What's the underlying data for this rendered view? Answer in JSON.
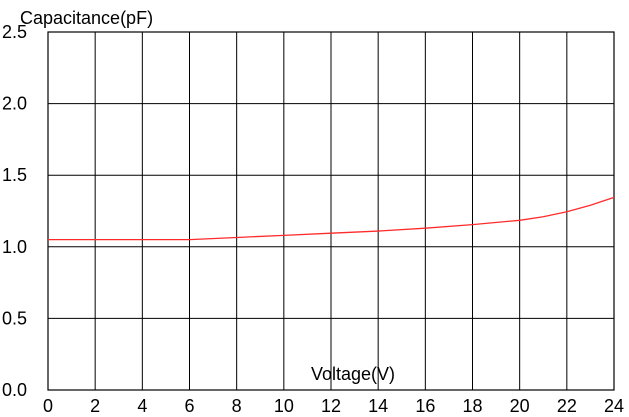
{
  "chart_data": {
    "type": "line",
    "title": "",
    "xlabel": "Voltage(V)",
    "ylabel": "Capacitance(pF)",
    "xlim": [
      0,
      24
    ],
    "ylim": [
      0.0,
      2.5
    ],
    "xticks": [
      0,
      2,
      4,
      6,
      8,
      10,
      12,
      14,
      16,
      18,
      20,
      22,
      24
    ],
    "xtick_labels": [
      "0",
      "2",
      "4",
      "6",
      "8",
      "10",
      "12",
      "14",
      "16",
      "18",
      "20",
      "22",
      "24"
    ],
    "yticks": [
      0.0,
      0.5,
      1.0,
      1.5,
      2.0,
      2.5
    ],
    "ytick_labels": [
      "0.0",
      "0.5",
      "1.0",
      "1.5",
      "2.0",
      "2.5"
    ],
    "grid": true,
    "series": [
      {
        "color": "#ff2a2a",
        "x": [
          0,
          2,
          4,
          6,
          8,
          10,
          12,
          14,
          16,
          18,
          20,
          21,
          22,
          23,
          24
        ],
        "y": [
          1.05,
          1.05,
          1.05,
          1.05,
          1.065,
          1.08,
          1.095,
          1.11,
          1.13,
          1.155,
          1.185,
          1.21,
          1.245,
          1.29,
          1.345
        ]
      }
    ]
  }
}
